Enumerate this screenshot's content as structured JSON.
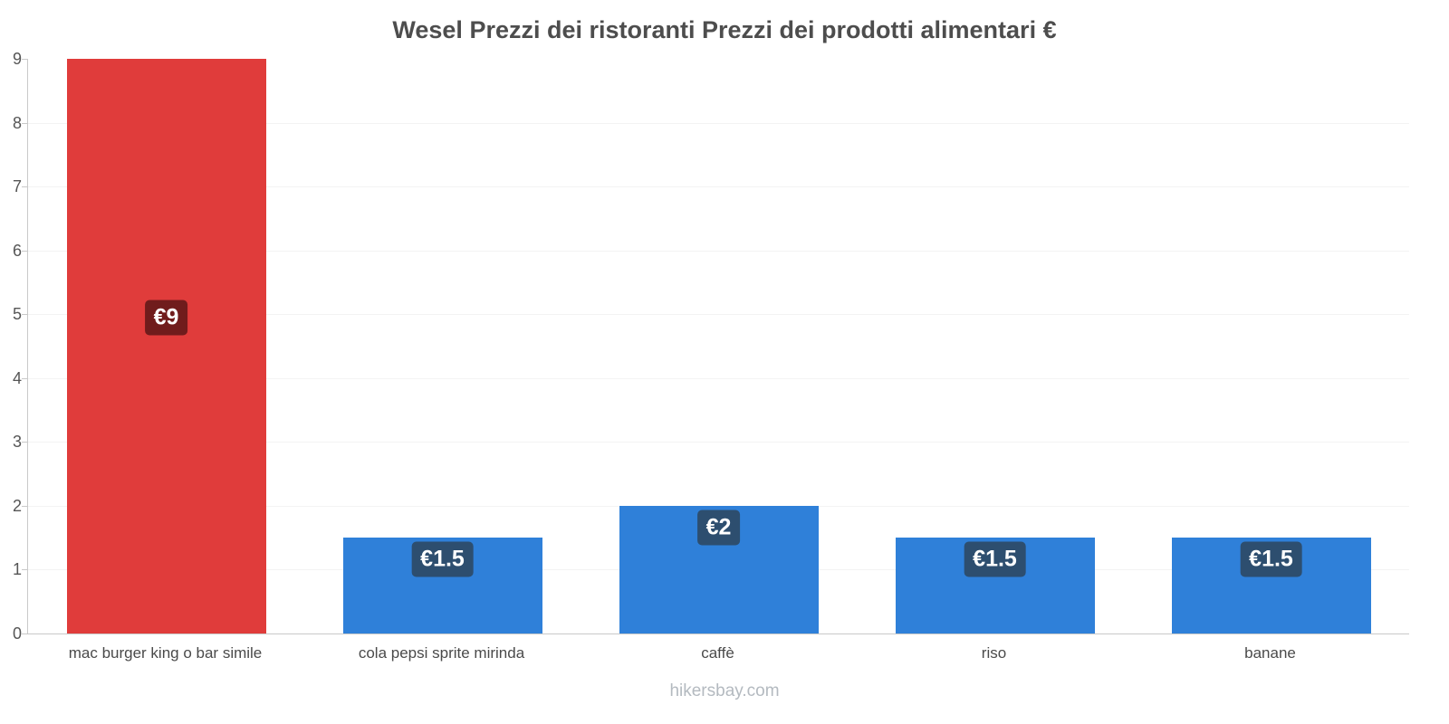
{
  "chart_data": {
    "type": "bar",
    "title": "Wesel Prezzi dei ristoranti Prezzi dei prodotti alimentari €",
    "categories": [
      "mac burger king o bar simile",
      "cola pepsi sprite mirinda",
      "caffè",
      "riso",
      "banane"
    ],
    "values": [
      9,
      1.5,
      2,
      1.5,
      1.5
    ],
    "value_labels": [
      "€9",
      "€1.5",
      "€2",
      "€1.5",
      "€1.5"
    ],
    "bar_colors": [
      "#e03c3b",
      "#2f80d9",
      "#2f80d9",
      "#2f80d9",
      "#2f80d9"
    ],
    "badge_colors": [
      "#701c1c",
      "#2d4e6f",
      "#2d4e6f",
      "#2d4e6f",
      "#2d4e6f"
    ],
    "xlabel": "",
    "ylabel": "",
    "ylim": [
      0,
      9
    ],
    "yticks": [
      0,
      1,
      2,
      3,
      4,
      5,
      6,
      7,
      8,
      9
    ],
    "grid": true,
    "legend": "none"
  },
  "footer": {
    "text": "hikersbay.com"
  }
}
